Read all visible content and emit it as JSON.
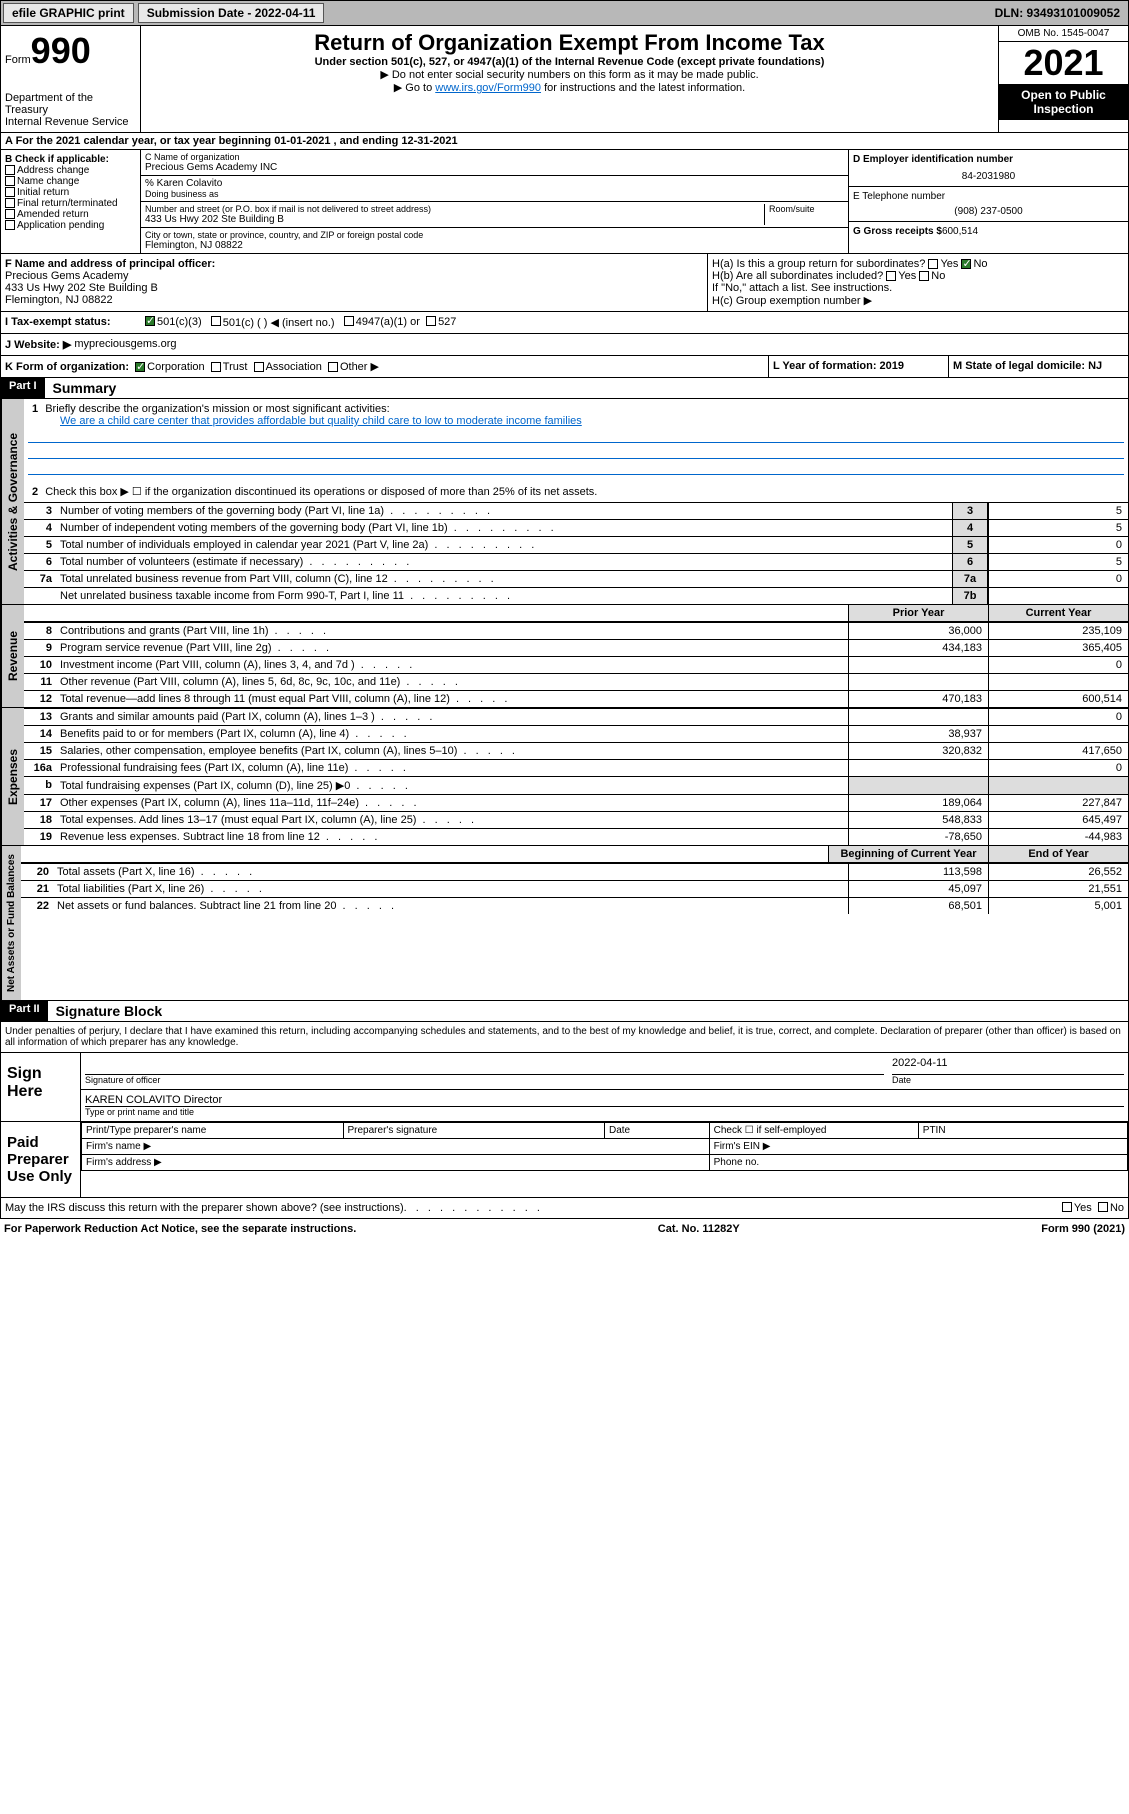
{
  "topbar": {
    "efile": "efile GRAPHIC print",
    "submission": "Submission Date - 2022-04-11",
    "dln": "DLN: 93493101009052"
  },
  "header": {
    "form_label": "Form",
    "form_num": "990",
    "title": "Return of Organization Exempt From Income Tax",
    "subtitle": "Under section 501(c), 527, or 4947(a)(1) of the Internal Revenue Code (except private foundations)",
    "instr1": "▶ Do not enter social security numbers on this form as it may be made public.",
    "instr2_pre": "▶ Go to ",
    "instr2_link": "www.irs.gov/Form990",
    "instr2_post": " for instructions and the latest information.",
    "dept": "Department of the Treasury",
    "irs": "Internal Revenue Service",
    "omb": "OMB No. 1545-0047",
    "year": "2021",
    "public": "Open to Public Inspection"
  },
  "section_a": "A For the 2021 calendar year, or tax year beginning 01-01-2021   , and ending 12-31-2021",
  "block_b": {
    "title": "B Check if applicable:",
    "items": [
      "Address change",
      "Name change",
      "Initial return",
      "Final return/terminated",
      "Amended return",
      "Application pending"
    ]
  },
  "block_c": {
    "name_label": "C Name of organization",
    "name": "Precious Gems Academy INC",
    "care_of": "% Karen Colavito",
    "dba_label": "Doing business as",
    "addr_label": "Number and street (or P.O. box if mail is not delivered to street address)",
    "room_label": "Room/suite",
    "addr": "433 Us Hwy 202 Ste Building B",
    "city_label": "City or town, state or province, country, and ZIP or foreign postal code",
    "city": "Flemington, NJ  08822"
  },
  "block_d": {
    "ein_label": "D Employer identification number",
    "ein": "84-2031980",
    "phone_label": "E Telephone number",
    "phone": "(908) 237-0500",
    "gross_label": "G Gross receipts $",
    "gross": "600,514"
  },
  "block_f": {
    "label": "F Name and address of principal officer:",
    "name": "Precious Gems Academy",
    "addr": "433 Us Hwy 202 Ste Building B",
    "city": "Flemington, NJ  08822"
  },
  "block_h": {
    "ha": "H(a)  Is this a group return for subordinates?",
    "hb": "H(b)  Are all subordinates included?",
    "hb_note": "If \"No,\" attach a list. See instructions.",
    "hc": "H(c)  Group exemption number ▶",
    "yes": "Yes",
    "no": "No"
  },
  "line_i": {
    "label": "I   Tax-exempt status:",
    "opts": [
      "501(c)(3)",
      "501(c) (  ) ◀ (insert no.)",
      "4947(a)(1) or",
      "527"
    ]
  },
  "line_j": {
    "label": "J   Website: ▶",
    "value": "mypreciousgems.org"
  },
  "line_k": {
    "label": "K Form of organization:",
    "opts": [
      "Corporation",
      "Trust",
      "Association",
      "Other ▶"
    ]
  },
  "line_l": {
    "label": "L Year of formation: 2019"
  },
  "line_m": {
    "label": "M State of legal domicile: NJ"
  },
  "part1": {
    "header": "Part I",
    "title": "Summary",
    "vtab_ag": "Activities & Governance",
    "vtab_rev": "Revenue",
    "vtab_exp": "Expenses",
    "vtab_na": "Net Assets or Fund Balances",
    "l1": "Briefly describe the organization's mission or most significant activities:",
    "l1_txt": "We are a child care center that provides affordable but quality child care to low to moderate income families",
    "l2": "Check this box ▶ ☐  if the organization discontinued its operations or disposed of more than 25% of its net assets.",
    "hdr_prior": "Prior Year",
    "hdr_current": "Current Year",
    "hdr_begin": "Beginning of Current Year",
    "hdr_end": "End of Year",
    "lines_simple": [
      {
        "n": "3",
        "t": "Number of voting members of the governing body (Part VI, line 1a)",
        "v": "5"
      },
      {
        "n": "4",
        "t": "Number of independent voting members of the governing body (Part VI, line 1b)",
        "v": "5"
      },
      {
        "n": "5",
        "t": "Total number of individuals employed in calendar year 2021 (Part V, line 2a)",
        "v": "0"
      },
      {
        "n": "6",
        "t": "Total number of volunteers (estimate if necessary)",
        "v": "5"
      },
      {
        "n": "7a",
        "t": "Total unrelated business revenue from Part VIII, column (C), line 12",
        "v": "0"
      },
      {
        "n": "",
        "t": "Net unrelated business taxable income from Form 990-T, Part I, line 11",
        "box": "7b",
        "v": ""
      }
    ],
    "lines_rev": [
      {
        "n": "8",
        "t": "Contributions and grants (Part VIII, line 1h)",
        "p": "36,000",
        "c": "235,109"
      },
      {
        "n": "9",
        "t": "Program service revenue (Part VIII, line 2g)",
        "p": "434,183",
        "c": "365,405"
      },
      {
        "n": "10",
        "t": "Investment income (Part VIII, column (A), lines 3, 4, and 7d )",
        "p": "",
        "c": "0"
      },
      {
        "n": "11",
        "t": "Other revenue (Part VIII, column (A), lines 5, 6d, 8c, 9c, 10c, and 11e)",
        "p": "",
        "c": ""
      },
      {
        "n": "12",
        "t": "Total revenue—add lines 8 through 11 (must equal Part VIII, column (A), line 12)",
        "p": "470,183",
        "c": "600,514"
      }
    ],
    "lines_exp": [
      {
        "n": "13",
        "t": "Grants and similar amounts paid (Part IX, column (A), lines 1–3 )",
        "p": "",
        "c": "0"
      },
      {
        "n": "14",
        "t": "Benefits paid to or for members (Part IX, column (A), line 4)",
        "p": "38,937",
        "c": ""
      },
      {
        "n": "15",
        "t": "Salaries, other compensation, employee benefits (Part IX, column (A), lines 5–10)",
        "p": "320,832",
        "c": "417,650"
      },
      {
        "n": "16a",
        "t": "Professional fundraising fees (Part IX, column (A), line 11e)",
        "p": "",
        "c": "0"
      },
      {
        "n": "b",
        "t": "Total fundraising expenses (Part IX, column (D), line 25) ▶0",
        "p": "",
        "c": "",
        "shaded": true
      },
      {
        "n": "17",
        "t": "Other expenses (Part IX, column (A), lines 11a–11d, 11f–24e)",
        "p": "189,064",
        "c": "227,847"
      },
      {
        "n": "18",
        "t": "Total expenses. Add lines 13–17 (must equal Part IX, column (A), line 25)",
        "p": "548,833",
        "c": "645,497"
      },
      {
        "n": "19",
        "t": "Revenue less expenses. Subtract line 18 from line 12",
        "p": "-78,650",
        "c": "-44,983"
      }
    ],
    "lines_na": [
      {
        "n": "20",
        "t": "Total assets (Part X, line 16)",
        "p": "113,598",
        "c": "26,552"
      },
      {
        "n": "21",
        "t": "Total liabilities (Part X, line 26)",
        "p": "45,097",
        "c": "21,551"
      },
      {
        "n": "22",
        "t": "Net assets or fund balances. Subtract line 21 from line 20",
        "p": "68,501",
        "c": "5,001"
      }
    ]
  },
  "part2": {
    "header": "Part II",
    "title": "Signature Block",
    "perjury": "Under penalties of perjury, I declare that I have examined this return, including accompanying schedules and statements, and to the best of my knowledge and belief, it is true, correct, and complete. Declaration of preparer (other than officer) is based on all information of which preparer has any knowledge.",
    "sign_here": "Sign Here",
    "sig_officer": "Signature of officer",
    "date_label": "Date",
    "date": "2022-04-11",
    "officer_name": "KAREN COLAVITO  Director",
    "type_name": "Type or print name and title",
    "paid": "Paid Preparer Use Only",
    "prep_name": "Print/Type preparer's name",
    "prep_sig": "Preparer's signature",
    "check_self": "Check ☐ if self-employed",
    "ptin": "PTIN",
    "firm_name": "Firm's name  ▶",
    "firm_ein": "Firm's EIN ▶",
    "firm_addr": "Firm's address ▶",
    "phone": "Phone no.",
    "discuss": "May the IRS discuss this return with the preparer shown above? (see instructions)",
    "yes": "Yes",
    "no": "No"
  },
  "footer": {
    "paperwork": "For Paperwork Reduction Act Notice, see the separate instructions.",
    "cat": "Cat. No. 11282Y",
    "form": "Form 990 (2021)"
  }
}
